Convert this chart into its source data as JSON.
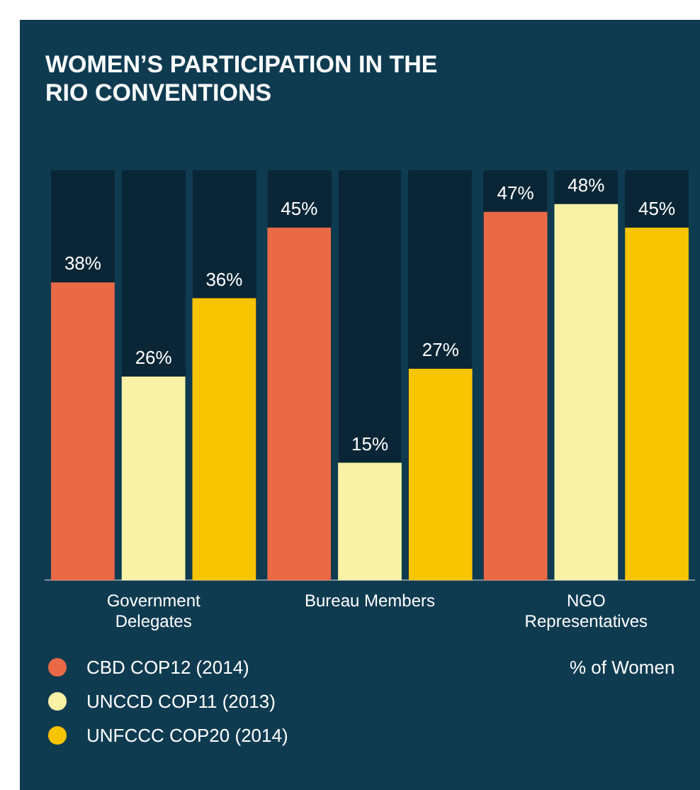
{
  "chart_data": {
    "type": "bar",
    "title": "WOMEN’S PARTICIPATION IN THE RIO CONVENTIONS",
    "categories": [
      "Government Delegates",
      "Bureau Members",
      "NGO Representatives"
    ],
    "series": [
      {
        "name": "CBD COP12 (2014)",
        "color": "#ea6a47",
        "values": [
          38,
          45,
          47
        ],
        "value_labels": [
          "38%",
          "45%",
          "47%"
        ]
      },
      {
        "name": "UNCCD COP11 (2013)",
        "color": "#f8f1a6",
        "values": [
          26,
          15,
          48
        ],
        "value_labels": [
          "26%",
          "15%",
          "48%"
        ]
      },
      {
        "name": "UNFCCC COP20 (2014)",
        "color": "#f7c400",
        "values": [
          36,
          27,
          45
        ],
        "value_labels": [
          "36%",
          "27%",
          "45%"
        ]
      }
    ],
    "annotations": [
      "% of Women"
    ],
    "legend": "bottom left",
    "grid": false
  }
}
